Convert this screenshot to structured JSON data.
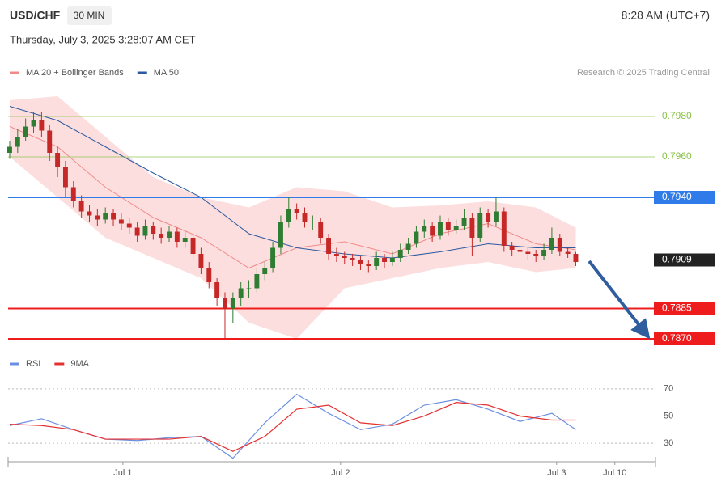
{
  "header": {
    "symbol": "USD/CHF",
    "interval": "30 MIN",
    "clock": "8:28 AM (UTC+7)",
    "date": "Thursday, July 3, 2025 3:28:07 AM CET",
    "credit": "Research © 2025 Trading Central"
  },
  "chart_data": [
    {
      "type": "candlestick",
      "legend": [
        {
          "label": "MA 20 + Bollinger Bands",
          "color": "#f08a8a"
        },
        {
          "label": "MA 50",
          "color": "#2c5aa0"
        }
      ],
      "up_color": "#2e7d32",
      "down_color": "#c62828",
      "candles": [
        [
          0.7962,
          0.7968,
          0.7959,
          0.7965
        ],
        [
          0.7965,
          0.7974,
          0.7962,
          0.797
        ],
        [
          0.797,
          0.7979,
          0.7968,
          0.7975
        ],
        [
          0.7975,
          0.7982,
          0.7972,
          0.7978
        ],
        [
          0.7978,
          0.7982,
          0.797,
          0.7973
        ],
        [
          0.7973,
          0.7976,
          0.7958,
          0.7962
        ],
        [
          0.7962,
          0.7965,
          0.795,
          0.7955
        ],
        [
          0.7955,
          0.7958,
          0.794,
          0.7945
        ],
        [
          0.7945,
          0.7948,
          0.7935,
          0.7938
        ],
        [
          0.7938,
          0.7941,
          0.793,
          0.7933
        ],
        [
          0.7933,
          0.7936,
          0.7928,
          0.7931
        ],
        [
          0.7931,
          0.7934,
          0.7926,
          0.7929
        ],
        [
          0.7929,
          0.7935,
          0.7927,
          0.7932
        ],
        [
          0.7932,
          0.7934,
          0.7926,
          0.7929
        ],
        [
          0.7929,
          0.7932,
          0.7924,
          0.7927
        ],
        [
          0.7927,
          0.793,
          0.7922,
          0.7925
        ],
        [
          0.7925,
          0.7928,
          0.7918,
          0.7921
        ],
        [
          0.7921,
          0.7929,
          0.7919,
          0.7926
        ],
        [
          0.7926,
          0.7928,
          0.7919,
          0.7922
        ],
        [
          0.7922,
          0.7925,
          0.7917,
          0.792
        ],
        [
          0.792,
          0.7926,
          0.7918,
          0.7923
        ],
        [
          0.7923,
          0.7925,
          0.7915,
          0.7918
        ],
        [
          0.7918,
          0.7923,
          0.7915,
          0.792
        ],
        [
          0.792,
          0.7922,
          0.7909,
          0.7912
        ],
        [
          0.7912,
          0.7915,
          0.7902,
          0.7905
        ],
        [
          0.7905,
          0.7908,
          0.7895,
          0.7898
        ],
        [
          0.7898,
          0.79,
          0.7886,
          0.789
        ],
        [
          0.789,
          0.7893,
          0.787,
          0.7885
        ],
        [
          0.7885,
          0.7893,
          0.7878,
          0.789
        ],
        [
          0.789,
          0.7898,
          0.7886,
          0.7895
        ],
        [
          0.7895,
          0.7899,
          0.789,
          0.7895
        ],
        [
          0.7895,
          0.7905,
          0.7893,
          0.7902
        ],
        [
          0.7902,
          0.7908,
          0.7899,
          0.7905
        ],
        [
          0.7905,
          0.7918,
          0.7903,
          0.7915
        ],
        [
          0.7915,
          0.7931,
          0.7912,
          0.7928
        ],
        [
          0.7928,
          0.794,
          0.7925,
          0.7934
        ],
        [
          0.7934,
          0.7937,
          0.7929,
          0.7932
        ],
        [
          0.7932,
          0.7935,
          0.7925,
          0.7928
        ],
        [
          0.7928,
          0.7931,
          0.7924,
          0.7928
        ],
        [
          0.7928,
          0.793,
          0.7917,
          0.792
        ],
        [
          0.792,
          0.7922,
          0.7909,
          0.7912
        ],
        [
          0.7912,
          0.7915,
          0.7908,
          0.7911
        ],
        [
          0.7911,
          0.7913,
          0.7907,
          0.791
        ],
        [
          0.791,
          0.7912,
          0.7906,
          0.7909
        ],
        [
          0.7909,
          0.7911,
          0.7904,
          0.7907
        ],
        [
          0.7907,
          0.7909,
          0.7903,
          0.7906
        ],
        [
          0.7906,
          0.7913,
          0.7904,
          0.791
        ],
        [
          0.791,
          0.7912,
          0.7905,
          0.7908
        ],
        [
          0.7908,
          0.7913,
          0.7906,
          0.791
        ],
        [
          0.791,
          0.7917,
          0.7908,
          0.7914
        ],
        [
          0.7914,
          0.792,
          0.7912,
          0.7917
        ],
        [
          0.7917,
          0.7926,
          0.7915,
          0.7923
        ],
        [
          0.7923,
          0.7929,
          0.792,
          0.7926
        ],
        [
          0.7926,
          0.7928,
          0.7918,
          0.7921
        ],
        [
          0.7921,
          0.7931,
          0.7919,
          0.7928
        ],
        [
          0.7928,
          0.793,
          0.7921,
          0.7924
        ],
        [
          0.7924,
          0.7929,
          0.7922,
          0.7926
        ],
        [
          0.7926,
          0.7934,
          0.7924,
          0.793
        ],
        [
          0.793,
          0.7932,
          0.7911,
          0.792
        ],
        [
          0.792,
          0.7935,
          0.7918,
          0.7932
        ],
        [
          0.7932,
          0.7934,
          0.7925,
          0.7928
        ],
        [
          0.7928,
          0.794,
          0.7926,
          0.7933
        ],
        [
          0.7933,
          0.7935,
          0.7913,
          0.7916
        ],
        [
          0.7916,
          0.7918,
          0.7911,
          0.7914
        ],
        [
          0.7914,
          0.7916,
          0.791,
          0.7913
        ],
        [
          0.7913,
          0.7915,
          0.7909,
          0.7912
        ],
        [
          0.7912,
          0.7914,
          0.7908,
          0.7911
        ],
        [
          0.7911,
          0.7917,
          0.7909,
          0.7914
        ],
        [
          0.7914,
          0.7925,
          0.7912,
          0.792
        ],
        [
          0.792,
          0.7922,
          0.7911,
          0.7913
        ],
        [
          0.7913,
          0.7915,
          0.791,
          0.7912
        ],
        [
          0.7912,
          0.7913,
          0.7906,
          0.7908
        ]
      ],
      "x": [
        0,
        6,
        12,
        18,
        24,
        30,
        36,
        42,
        48,
        54,
        60,
        66,
        71
      ],
      "ma20": [
        0.7975,
        0.7965,
        0.7945,
        0.793,
        0.792,
        0.7905,
        0.7915,
        0.7918,
        0.7912,
        0.7922,
        0.7927,
        0.7917,
        0.7914
      ],
      "bb_upper": [
        0.7988,
        0.799,
        0.797,
        0.795,
        0.794,
        0.7935,
        0.7945,
        0.7943,
        0.7935,
        0.7936,
        0.7938,
        0.7935,
        0.7925
      ],
      "bb_lower": [
        0.796,
        0.794,
        0.792,
        0.791,
        0.79,
        0.7878,
        0.787,
        0.7895,
        0.79,
        0.7905,
        0.7908,
        0.7903,
        0.7905
      ],
      "ma50": [
        0.7985,
        0.7978,
        0.7965,
        0.7952,
        0.794,
        0.7922,
        0.7915,
        0.7912,
        0.791,
        0.7913,
        0.7917,
        0.7915,
        0.7915
      ],
      "levels": [
        {
          "value": 0.798,
          "label": "0.7980",
          "color": "#8bc34a",
          "boxed": false
        },
        {
          "value": 0.796,
          "label": "0.7960",
          "color": "#8bc34a",
          "boxed": false
        },
        {
          "value": 0.794,
          "label": "0.7940",
          "color": "#2f7bea",
          "boxed": true
        },
        {
          "value": 0.7909,
          "label": "0.7909",
          "color": "#222222",
          "boxed": true,
          "dotted": true
        },
        {
          "value": 0.7885,
          "label": "0.7885",
          "color": "#ee1c1c",
          "boxed": true
        },
        {
          "value": 0.787,
          "label": "0.7870",
          "color": "#ee1c1c",
          "boxed": true
        }
      ],
      "xlim": [
        -0.2,
        81
      ],
      "ylim": [
        0.7866,
        0.7994
      ]
    },
    {
      "type": "line",
      "legend": [
        {
          "label": "RSI",
          "color": "#6b8fe0"
        },
        {
          "label": "9MA",
          "color": "#e53030"
        }
      ],
      "x": [
        0,
        4,
        8,
        12,
        16,
        20,
        24,
        28,
        32,
        36,
        40,
        44,
        48,
        52,
        56,
        60,
        64,
        68,
        71
      ],
      "series": [
        {
          "name": "RSI",
          "color": "#6b8fe0",
          "values": [
            43,
            48,
            40,
            33,
            32,
            34,
            35,
            19,
            45,
            66,
            52,
            40,
            44,
            58,
            62,
            55,
            46,
            52,
            40
          ]
        },
        {
          "name": "9MA",
          "color": "#e53030",
          "values": [
            44,
            43,
            40,
            33,
            33,
            33,
            35,
            24,
            35,
            55,
            58,
            45,
            43,
            50,
            60,
            58,
            50,
            47,
            47
          ]
        }
      ],
      "xlim": [
        -0.2,
        81
      ],
      "ylim": [
        17,
        80
      ],
      "yticks": [
        30,
        50,
        70
      ],
      "xticks": [
        {
          "value": 14.2,
          "label": "Jul 1"
        },
        {
          "value": 41.5,
          "label": "Jul 2"
        },
        {
          "value": 68.6,
          "label": "Jul 3"
        },
        {
          "value": 75.9,
          "label": "Jul 10"
        }
      ]
    }
  ]
}
